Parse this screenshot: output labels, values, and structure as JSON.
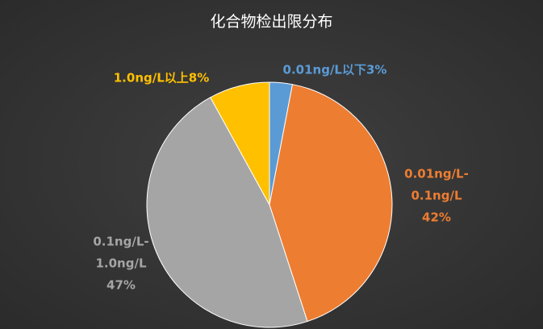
{
  "chart_data": {
    "type": "pie",
    "title": "化合物检出限分布",
    "categories": [
      "0.01ng/L以下",
      "0.01ng/L-0.1ng/L",
      "0.1ng/L-1.0ng/L",
      "1.0ng/L以上"
    ],
    "values": [
      3,
      42,
      47,
      8
    ],
    "value_labels": [
      "3%",
      "42%",
      "47%",
      "8%"
    ],
    "colors": [
      "#5b9bd5",
      "#ed7d31",
      "#a5a5a5",
      "#ffc000"
    ]
  }
}
